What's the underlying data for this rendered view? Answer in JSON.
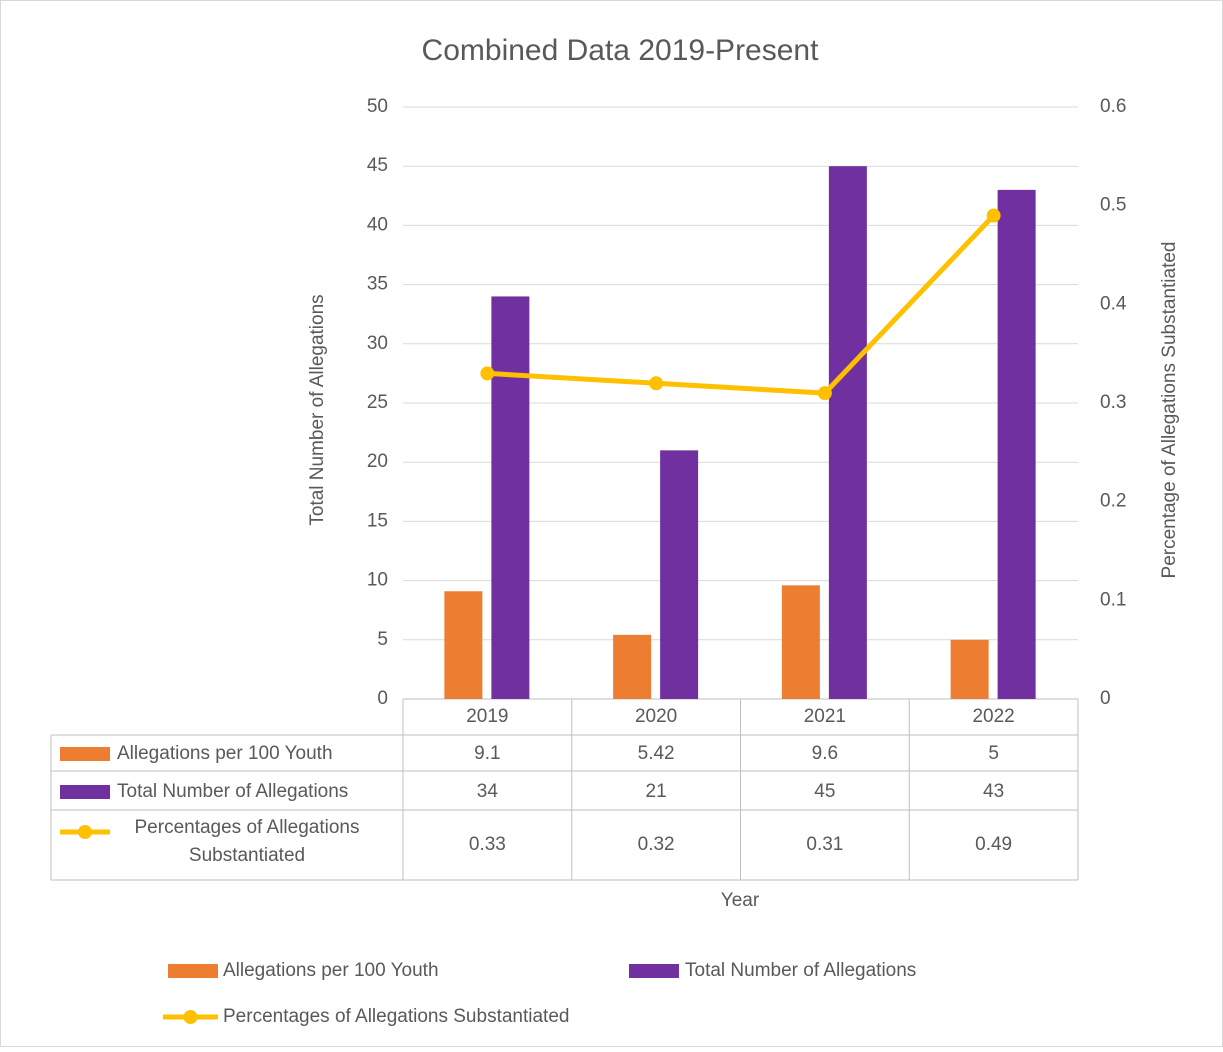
{
  "chart_data": {
    "type": "bar",
    "title": "Combined Data 2019-Present",
    "categories": [
      "2019",
      "2020",
      "2021",
      "2022"
    ],
    "series": [
      {
        "name": "Allegations per 100 Youth",
        "color": "#ED7D31",
        "type": "bar",
        "values": [
          9.1,
          5.42,
          9.6,
          5
        ]
      },
      {
        "name": "Total Number of  Allegations",
        "color": "#7030A0",
        "type": "bar",
        "values": [
          34,
          21,
          45,
          43
        ]
      },
      {
        "name": "Percentages of Allegations Substantiated",
        "color": "#FFC000",
        "type": "line",
        "axis": "y2",
        "values": [
          0.33,
          0.32,
          0.31,
          0.49
        ]
      }
    ],
    "ylabel": "Total Number of Allegations",
    "y2label": "Percentage of Allegations Substantiated",
    "xlabel": "Year",
    "ylim": [
      0,
      50
    ],
    "yticks": [
      0,
      5,
      10,
      15,
      20,
      25,
      30,
      35,
      40,
      45,
      50
    ],
    "y2lim": [
      0,
      0.6
    ],
    "y2ticks": [
      0,
      0.1,
      0.2,
      0.3,
      0.4,
      0.5,
      0.6
    ],
    "grid": true,
    "legend": "bottom"
  }
}
